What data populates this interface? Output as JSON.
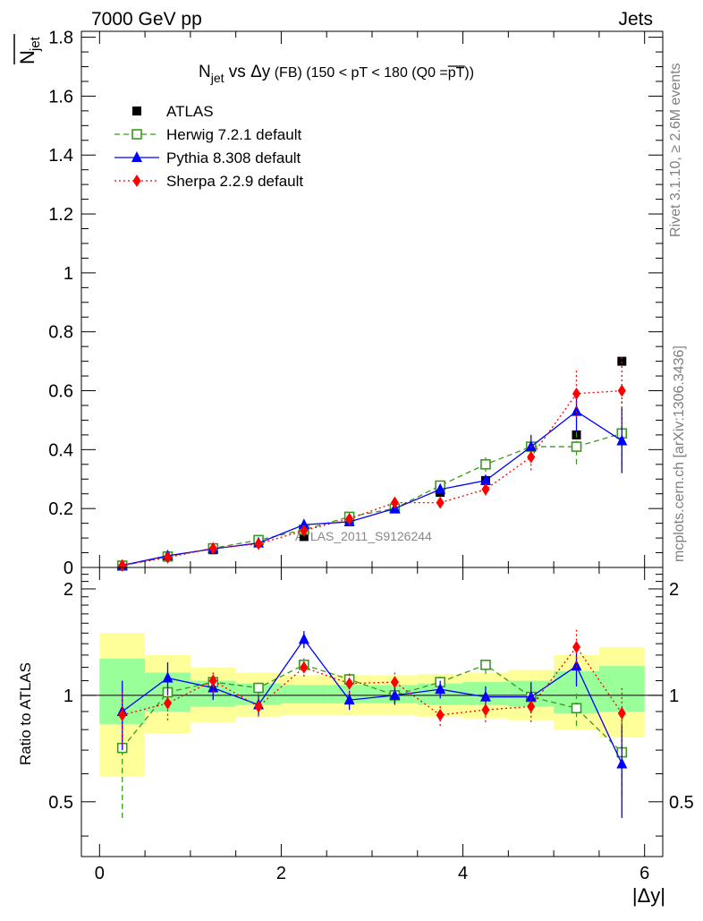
{
  "header": {
    "left": "7000 GeV pp",
    "right": "Jets"
  },
  "side_labels": {
    "top": "Rivet 3.1.10, ≥ 2.6M events",
    "bottom": "mcplots.cern.ch [arXiv:1306.3436]"
  },
  "watermark": "ATLAS_2011_S9126244",
  "colors": {
    "atlas": "#000000",
    "herwig": "#3a9a1e",
    "pythia": "#0000ff",
    "sherpa": "#ff0000",
    "band_outer": "#ffff99",
    "band_inner": "#99ff99"
  },
  "chart_data": [
    {
      "type": "scatter",
      "title": "N_jet vs Δy (FB) (150 < pT < 180 (Q0 = pT))",
      "title_parts": {
        "main": "N",
        "sub": "jet",
        "mid": " vs Δy",
        "rest": " (FB) (150 < pT < 180 (Q0 =",
        "over": "pT",
        "end": "))"
      },
      "ylabel": "N",
      "ylabel_sub": "jet",
      "xlim": [
        -0.2,
        6.2
      ],
      "ylim": [
        0,
        1.82
      ],
      "yticks": [
        "0",
        "0.2",
        "0.4",
        "0.6",
        "0.8",
        "1",
        "1.2",
        "1.4",
        "1.6",
        "1.8"
      ],
      "legend": [
        "ATLAS",
        "Herwig 7.2.1 default",
        "Pythia 8.308 default",
        "Sherpa 2.2.9 default"
      ],
      "x": [
        0.25,
        0.75,
        1.25,
        1.75,
        2.25,
        2.75,
        3.25,
        3.75,
        4.25,
        4.75,
        5.25,
        5.75
      ],
      "series": [
        {
          "name": "ATLAS",
          "values": [
            0.008,
            0.036,
            0.06,
            0.09,
            0.105,
            0.155,
            0.2,
            0.255,
            0.295,
            0.41,
            0.45,
            0.7
          ]
        },
        {
          "name": "Herwig 7.2.1 default",
          "values": [
            0.006,
            0.037,
            0.065,
            0.093,
            0.128,
            0.172,
            0.2,
            0.278,
            0.35,
            0.41,
            0.41,
            0.455
          ],
          "errors": [
            0.004,
            0.005,
            0.006,
            0.007,
            0.008,
            0.01,
            0.01,
            0.015,
            0.025,
            0.03,
            0.06,
            0.11
          ]
        },
        {
          "name": "Pythia 8.308 default",
          "values": [
            0.007,
            0.04,
            0.063,
            0.083,
            0.145,
            0.155,
            0.2,
            0.265,
            0.295,
            0.41,
            0.53,
            0.43
          ],
          "errors": [
            0.003,
            0.005,
            0.006,
            0.007,
            0.01,
            0.01,
            0.012,
            0.015,
            0.02,
            0.04,
            0.07,
            0.11
          ]
        },
        {
          "name": "Sherpa 2.2.9 default",
          "values": [
            0.007,
            0.034,
            0.065,
            0.08,
            0.125,
            0.165,
            0.22,
            0.22,
            0.265,
            0.375,
            0.59,
            0.6
          ],
          "errors": [
            0.003,
            0.005,
            0.006,
            0.007,
            0.009,
            0.01,
            0.012,
            0.015,
            0.02,
            0.045,
            0.08,
            0.12
          ]
        }
      ]
    },
    {
      "type": "scatter",
      "ylabel": "Ratio to ATLAS",
      "xlabel": "|Δy|",
      "xlim": [
        -0.2,
        6.2
      ],
      "ylim": [
        0.35,
        2.3
      ],
      "xticks": [
        "0",
        "2",
        "4",
        "6"
      ],
      "yticks": [
        "0.5",
        "1",
        "2"
      ],
      "bin_edges": [
        0,
        0.5,
        1,
        1.5,
        2,
        2.5,
        3,
        3.5,
        4,
        4.5,
        5,
        5.5,
        6
      ],
      "bands": {
        "outer_low": [
          0.59,
          0.78,
          0.84,
          0.87,
          0.88,
          0.88,
          0.88,
          0.87,
          0.86,
          0.85,
          0.8,
          0.76
        ],
        "outer_high": [
          1.5,
          1.3,
          1.2,
          1.16,
          1.14,
          1.14,
          1.14,
          1.15,
          1.16,
          1.18,
          1.3,
          1.37
        ],
        "inner_low": [
          0.83,
          0.9,
          0.93,
          0.94,
          0.95,
          0.95,
          0.95,
          0.94,
          0.94,
          0.93,
          0.89,
          0.9
        ],
        "inner_high": [
          1.27,
          1.16,
          1.1,
          1.08,
          1.07,
          1.07,
          1.07,
          1.08,
          1.09,
          1.1,
          1.17,
          1.21
        ]
      },
      "series": [
        {
          "name": "Herwig 7.2.1 default",
          "values": [
            0.71,
            1.02,
            1.09,
            1.05,
            1.22,
            1.11,
            1.0,
            1.09,
            1.22,
            0.99,
            0.92,
            0.69
          ],
          "errors": [
            0.26,
            0.1,
            0.07,
            0.06,
            0.06,
            0.06,
            0.05,
            0.06,
            0.07,
            0.08,
            0.1,
            0.17
          ]
        },
        {
          "name": "Pythia 8.308 default",
          "values": [
            0.9,
            1.12,
            1.05,
            0.94,
            1.44,
            0.97,
            1.0,
            1.04,
            0.99,
            0.99,
            1.21,
            0.64
          ],
          "errors": [
            0.2,
            0.12,
            0.08,
            0.06,
            0.08,
            0.06,
            0.06,
            0.06,
            0.07,
            0.1,
            0.15,
            0.19
          ]
        },
        {
          "name": "Sherpa 2.2.9 default",
          "values": [
            0.88,
            0.95,
            1.1,
            0.93,
            1.2,
            1.08,
            1.09,
            0.88,
            0.91,
            0.93,
            1.37,
            0.89
          ],
          "errors": [
            0.15,
            0.1,
            0.08,
            0.06,
            0.07,
            0.07,
            0.07,
            0.06,
            0.07,
            0.09,
            0.17,
            0.16
          ]
        }
      ]
    }
  ]
}
